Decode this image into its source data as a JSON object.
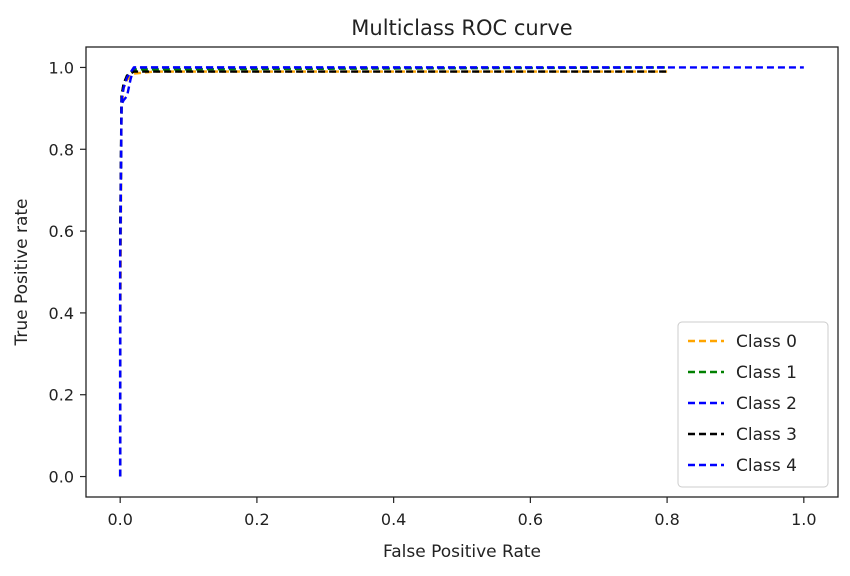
{
  "chart_data": {
    "type": "line",
    "title": "Multiclass ROC curve",
    "xlabel": "False Positive Rate",
    "ylabel": "True Positive rate",
    "xlim": [
      -0.05,
      1.05
    ],
    "ylim": [
      -0.05,
      1.05
    ],
    "xticks": [
      0.0,
      0.2,
      0.4,
      0.6,
      0.8,
      1.0
    ],
    "xtick_labels": [
      "0.0",
      "0.2",
      "0.4",
      "0.6",
      "0.8",
      "1.0"
    ],
    "yticks": [
      0.0,
      0.2,
      0.4,
      0.6,
      0.8,
      1.0
    ],
    "ytick_labels": [
      "0.0",
      "0.2",
      "0.4",
      "0.6",
      "0.8",
      "1.0"
    ],
    "grid": false,
    "legend_position": "lower-right",
    "line_style": "dashed",
    "series": [
      {
        "name": "Class 0",
        "color": "#FFA500",
        "x": [
          0.0,
          0.0,
          0.002,
          0.005,
          0.01,
          0.02,
          0.05,
          0.8
        ],
        "y": [
          0.0,
          0.3,
          0.9,
          0.95,
          0.97,
          0.985,
          0.99,
          0.99
        ]
      },
      {
        "name": "Class 1",
        "color": "#008000",
        "x": [
          0.0,
          0.0,
          0.002,
          0.005,
          0.01,
          0.02,
          0.8
        ],
        "y": [
          0.0,
          0.5,
          0.93,
          0.96,
          0.98,
          0.995,
          1.0
        ]
      },
      {
        "name": "Class 2",
        "color": "#0000FF",
        "x": [
          0.0,
          0.0,
          0.002,
          0.005,
          0.01,
          0.015,
          0.02,
          0.8
        ],
        "y": [
          0.0,
          0.55,
          0.91,
          0.92,
          0.93,
          0.97,
          1.0,
          1.0
        ]
      },
      {
        "name": "Class 3",
        "color": "#000000",
        "x": [
          0.0,
          0.0,
          0.002,
          0.005,
          0.01,
          0.02,
          0.8
        ],
        "y": [
          0.0,
          0.6,
          0.93,
          0.96,
          0.98,
          0.99,
          0.99
        ]
      },
      {
        "name": "Class 4",
        "color": "#0000FF",
        "x": [
          0.0,
          0.0,
          0.002,
          0.005,
          0.01,
          0.02,
          1.0
        ],
        "y": [
          0.0,
          0.5,
          0.92,
          0.95,
          0.975,
          1.0,
          1.0
        ]
      }
    ]
  }
}
